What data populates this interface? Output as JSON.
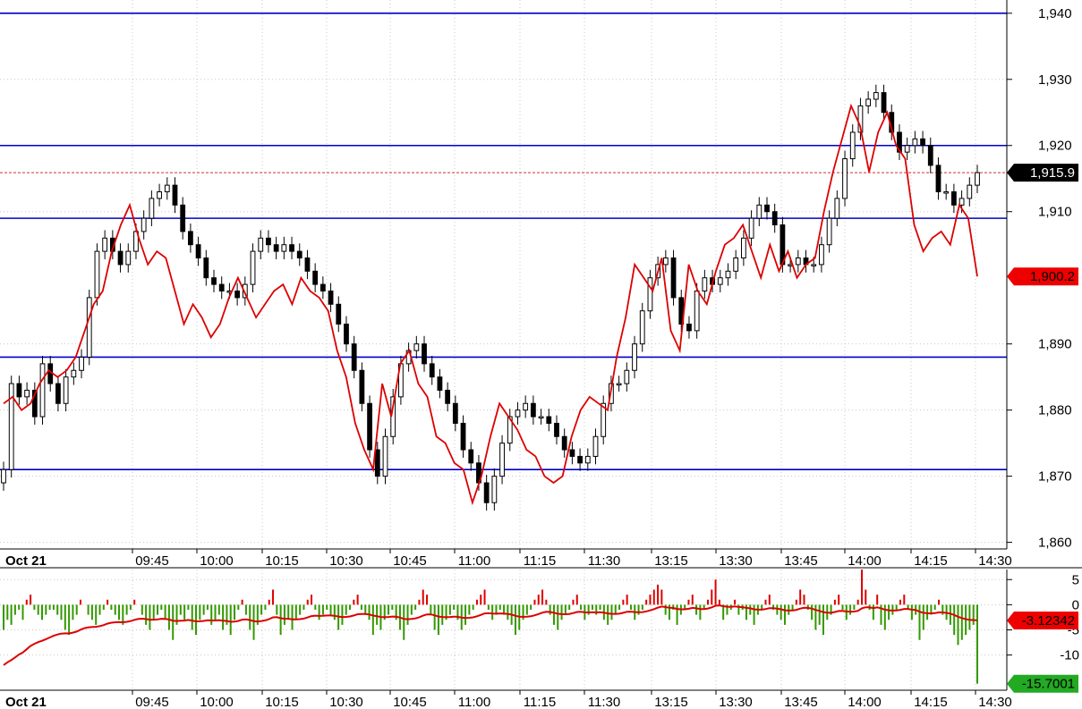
{
  "colors": {
    "background": "#ffffff",
    "grid": "#c8c8c8",
    "level_line": "#0000cc",
    "candle_up": "#ffffff",
    "candle_down": "#000000",
    "candle_outline": "#000000",
    "red_line": "#dd0000",
    "last_price_badge": "#000000",
    "red_badge": "#ee0000",
    "hist_positive": "#dd0000",
    "hist_negative": "#339900",
    "osc_line": "#dd0000",
    "osc_badge": "#22aa22"
  },
  "chart_data": [
    {
      "type": "candlestick",
      "date_label": "Oct 21",
      "x_ticks": [
        "09:45",
        "10:00",
        "10:15",
        "10:30",
        "10:45",
        "11:00",
        "11:15",
        "11:30",
        "13:15",
        "13:30",
        "13:45",
        "14:00",
        "14:15",
        "14:30"
      ],
      "y_ticks": [
        "1,860",
        "1,870",
        "1,880",
        "1,890",
        "1,910",
        "1,920",
        "1,930",
        "1,940"
      ],
      "y_tick_values": [
        1860,
        1870,
        1880,
        1890,
        1910,
        1920,
        1930,
        1940
      ],
      "ylim": [
        1859,
        1942
      ],
      "grid": true,
      "horizontal_levels": [
        1940,
        1920,
        1909,
        1888,
        1871
      ],
      "last_price": 1915.9,
      "last_price_label": "1,915.9",
      "red_line_last": 1900.2,
      "red_line_label": "1,900.2",
      "close": [
        1871,
        1884,
        1882,
        1883,
        1879,
        1887,
        1884,
        1881,
        1885,
        1886,
        1888,
        1897,
        1904,
        1906,
        1904,
        1902,
        1904,
        1907,
        1909,
        1912,
        1913,
        1914,
        1911,
        1907,
        1905,
        1903,
        1900,
        1899,
        1898,
        1898,
        1897,
        1899,
        1904,
        1906,
        1905,
        1904,
        1905,
        1904,
        1903,
        1901,
        1899,
        1898,
        1896,
        1893,
        1890,
        1886,
        1881,
        1874,
        1870,
        1876,
        1882,
        1887,
        1889,
        1890,
        1887,
        1885,
        1883,
        1881,
        1878,
        1874,
        1872,
        1869,
        1866,
        1870,
        1875,
        1879,
        1880,
        1881,
        1879,
        1879,
        1878,
        1876,
        1874,
        1873,
        1872,
        1873,
        1876,
        1881,
        1884,
        1884,
        1886,
        1890,
        1895,
        1900,
        1902,
        1903,
        1897,
        1893,
        1892,
        1898,
        1900,
        1899,
        1900,
        1901,
        1903,
        1906,
        1909,
        1911,
        1910,
        1908,
        1902,
        1902,
        1903,
        1902,
        1902,
        1905,
        1909,
        1912,
        1918,
        1922,
        1926,
        1927,
        1928,
        1925,
        1922,
        1919,
        1920,
        1921,
        1920,
        1917,
        1913,
        1913,
        1911,
        1912,
        1914,
        1915.9
      ],
      "red_line": [
        1881,
        1882,
        1880,
        1881,
        1884,
        1886,
        1885,
        1886,
        1888,
        1892,
        1896,
        1898,
        1904,
        1908,
        1911,
        1906,
        1902,
        1904,
        1903,
        1898,
        1893,
        1896,
        1894,
        1891,
        1893,
        1897,
        1900,
        1897,
        1894,
        1896,
        1898,
        1899,
        1896,
        1900,
        1898,
        1897,
        1895,
        1889,
        1885,
        1878,
        1874,
        1871,
        1884,
        1879,
        1887,
        1889,
        1884,
        1882,
        1876,
        1875,
        1872,
        1871,
        1866,
        1870,
        1876,
        1881,
        1879,
        1877,
        1874,
        1873,
        1870,
        1869,
        1870,
        1876,
        1880,
        1882,
        1881,
        1880,
        1888,
        1894,
        1902,
        1900,
        1898,
        1903,
        1892,
        1889,
        1902,
        1898,
        1896,
        1901,
        1905,
        1906,
        1908,
        1904,
        1900,
        1905,
        1901,
        1904,
        1900,
        1902,
        1903,
        1910,
        1916,
        1921,
        1926,
        1923,
        1916,
        1922,
        1925,
        1920,
        1918,
        1908,
        1904,
        1906,
        1907,
        1905,
        1911,
        1909,
        1900.2
      ]
    },
    {
      "type": "bar",
      "y_ticks": [
        "5",
        "0",
        "-5",
        "-10"
      ],
      "y_tick_values": [
        5,
        0,
        -5,
        -10
      ],
      "ylim": [
        -17,
        7
      ],
      "x_ticks": [
        "09:45",
        "10:00",
        "10:15",
        "10:30",
        "10:45",
        "11:00",
        "11:15",
        "11:30",
        "13:15",
        "13:30",
        "13:45",
        "14:00",
        "14:15",
        "14:30"
      ],
      "date_label": "Oct 21",
      "osc_last": -3.12342,
      "osc_label": "-3.12342",
      "hist_last": -15.7001,
      "hist_label": "-15.7001",
      "values": [
        -5,
        -3,
        -4,
        -2,
        -1,
        -3,
        1,
        2,
        -1,
        -2,
        -3,
        -2,
        -1,
        -1,
        -2,
        -3,
        -5,
        -6,
        -3,
        -2,
        1,
        0,
        -2,
        -3,
        -4,
        -2,
        -1,
        1,
        -1,
        -2,
        -3,
        -4,
        -2,
        -1,
        1,
        0,
        -2,
        -4,
        -5,
        -3,
        -2,
        -1,
        -3,
        -5,
        -7,
        -4,
        -2,
        -3,
        -1,
        -5,
        -6,
        -3,
        -2,
        -1,
        -4,
        -3,
        -2,
        -5,
        -4,
        -6,
        -3,
        -1,
        1,
        -2,
        -5,
        -7,
        -4,
        -2,
        -1,
        1,
        3,
        -2,
        -6,
        -4,
        -3,
        -5,
        -3,
        -2,
        -1,
        1,
        2,
        -1,
        -3,
        -2,
        -1,
        -2,
        -3,
        -5,
        -4,
        -2,
        -1,
        1,
        2,
        -1,
        -2,
        -3,
        -6,
        -4,
        -5,
        -3,
        -2,
        -1,
        -3,
        -5,
        -7,
        -4,
        -2,
        -1,
        1,
        3,
        2,
        -2,
        -5,
        -6,
        -4,
        -3,
        -2,
        -1,
        -3,
        -5,
        -4,
        -2,
        -1,
        1,
        2,
        3,
        -1,
        -3,
        -2,
        -1,
        -2,
        -3,
        -4,
        -6,
        -5,
        -3,
        -2,
        -1,
        1,
        2,
        3,
        1,
        -2,
        -4,
        -5,
        -3,
        -2,
        -1,
        1,
        2,
        -1,
        -3,
        -2,
        -1,
        -2,
        -1,
        -3,
        -4,
        -3,
        -2,
        -1,
        1,
        2,
        -1,
        -3,
        -2,
        -1,
        1,
        2,
        3,
        4,
        3,
        -2,
        -3,
        -1,
        -4,
        -2,
        -1,
        1,
        2,
        -2,
        -3,
        -1,
        1,
        3,
        5,
        1,
        -3,
        -2,
        -1,
        1,
        -2,
        -1,
        -3,
        -2,
        -4,
        -2,
        -1,
        1,
        2,
        -1,
        -2,
        -3,
        -4,
        -2,
        -1,
        1,
        3,
        2,
        -1,
        -3,
        -5,
        -4,
        -6,
        -3,
        -2,
        1,
        2,
        -1,
        -3,
        -2,
        -1,
        1,
        7,
        3,
        -1,
        -3,
        2,
        -4,
        -5,
        -3,
        -2,
        -1,
        1,
        2,
        -1,
        -3,
        -2,
        -7,
        -5,
        -3,
        -2,
        -1,
        1,
        -2,
        -3,
        -4,
        -6,
        -8,
        -7,
        -6,
        -5,
        -4,
        -15.7
      ]
    }
  ]
}
